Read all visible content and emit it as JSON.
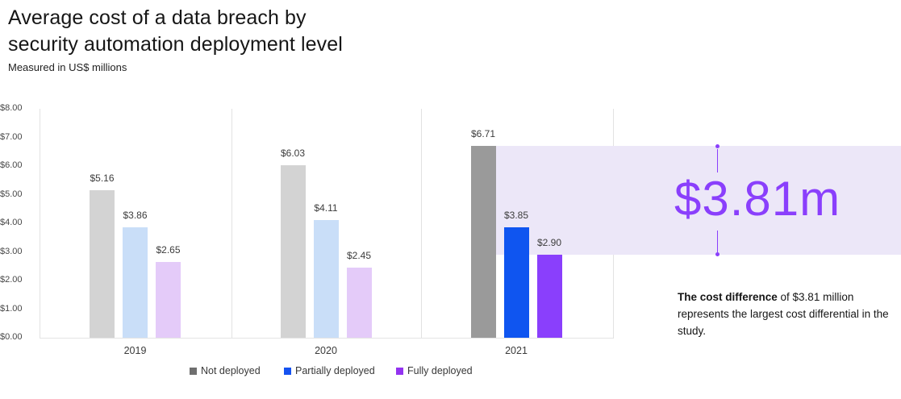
{
  "title": {
    "line1": "Average cost of a data breach by",
    "line2": "security automation deployment level"
  },
  "subtitle": "Measured in US$ millions",
  "chart_data": {
    "type": "bar",
    "title": "Average cost of a data breach by security automation deployment level",
    "subtitle": "Measured in US$ millions",
    "unit": "US$ millions",
    "categories": [
      "2019",
      "2020",
      "2021"
    ],
    "series": [
      {
        "name": "Not deployed",
        "values": [
          5.16,
          6.03,
          6.71
        ],
        "labels": [
          "$5.16",
          "$6.03",
          "$6.71"
        ]
      },
      {
        "name": "Partially deployed",
        "values": [
          3.86,
          4.11,
          3.85
        ],
        "labels": [
          "$3.86",
          "$4.11",
          "$3.85"
        ]
      },
      {
        "name": "Fully deployed",
        "values": [
          2.65,
          2.45,
          2.9
        ],
        "labels": [
          "$2.65",
          "$2.45",
          "$2.90"
        ]
      }
    ],
    "ylim": [
      0,
      8
    ],
    "y_ticks": [
      "$0.00",
      "$1.00",
      "$2.00",
      "$3.00",
      "$4.00",
      "$5.00",
      "$6.00",
      "$7.00",
      "$8.00"
    ],
    "grid": false,
    "legend_position": "bottom",
    "highlight_category": "2021",
    "colors": {
      "muted": [
        "#d3d3d3",
        "#c9def8",
        "#e4cbf9"
      ],
      "highlight": [
        "#9a9a9a",
        "#0f55f0",
        "#8a3ffc"
      ],
      "legend": [
        "#6f6f6f",
        "#1552f0",
        "#9333f0"
      ]
    }
  },
  "annotation": {
    "value": "$3.81m",
    "band_range": [
      2.9,
      6.71
    ],
    "band_color": "#ece7f8",
    "accent_color": "#8a3ffc",
    "note_bold": "The cost difference",
    "note_rest": " of $3.81 million represents the largest cost differential in the study."
  }
}
